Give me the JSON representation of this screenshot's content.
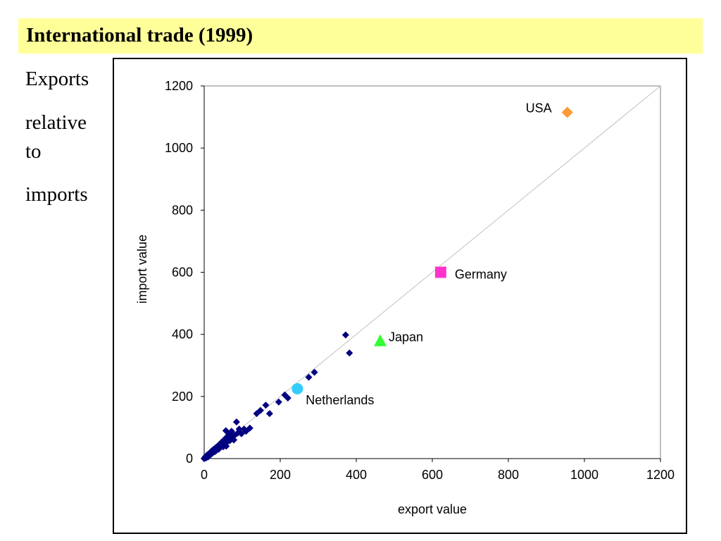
{
  "slide": {
    "title": "International trade (1999)",
    "side_lines": [
      "Exports",
      "relative",
      "to",
      "imports"
    ]
  },
  "chart_data": {
    "type": "scatter",
    "title": "",
    "xlabel": "export value",
    "ylabel": "import value",
    "xlim": [
      0,
      1200
    ],
    "ylim": [
      0,
      1200
    ],
    "xticks": [
      "0",
      "200",
      "400",
      "600",
      "800",
      "1000",
      "1200"
    ],
    "yticks": [
      "0",
      "200",
      "400",
      "600",
      "800",
      "1000",
      "1200"
    ],
    "grid": false,
    "reference_line": {
      "from": [
        0,
        0
      ],
      "to": [
        1200,
        1200
      ],
      "color": "#c0c0c0"
    },
    "series": [
      {
        "color": "#000080",
        "marker": "diamond",
        "points": [
          [
            0,
            0
          ],
          [
            2,
            3
          ],
          [
            3,
            6
          ],
          [
            5,
            2
          ],
          [
            6,
            8
          ],
          [
            8,
            12
          ],
          [
            10,
            5
          ],
          [
            12,
            15
          ],
          [
            14,
            10
          ],
          [
            16,
            20
          ],
          [
            18,
            14
          ],
          [
            20,
            25
          ],
          [
            22,
            18
          ],
          [
            25,
            30
          ],
          [
            28,
            22
          ],
          [
            30,
            35
          ],
          [
            32,
            26
          ],
          [
            35,
            40
          ],
          [
            38,
            30
          ],
          [
            40,
            45
          ],
          [
            42,
            36
          ],
          [
            45,
            52
          ],
          [
            48,
            42
          ],
          [
            50,
            38
          ],
          [
            52,
            60
          ],
          [
            55,
            48
          ],
          [
            57,
            90
          ],
          [
            58,
            40
          ],
          [
            60,
            70
          ],
          [
            62,
            55
          ],
          [
            65,
            80
          ],
          [
            68,
            58
          ],
          [
            70,
            65
          ],
          [
            72,
            88
          ],
          [
            75,
            70
          ],
          [
            78,
            60
          ],
          [
            80,
            75
          ],
          [
            85,
            118
          ],
          [
            88,
            82
          ],
          [
            92,
            95
          ],
          [
            98,
            80
          ],
          [
            105,
            95
          ],
          [
            110,
            88
          ],
          [
            120,
            98
          ],
          [
            138,
            145
          ],
          [
            148,
            155
          ],
          [
            162,
            172
          ],
          [
            172,
            145
          ],
          [
            196,
            182
          ],
          [
            212,
            205
          ],
          [
            220,
            195
          ],
          [
            275,
            262
          ],
          [
            290,
            278
          ],
          [
            372,
            398
          ],
          [
            382,
            340
          ]
        ]
      }
    ],
    "highlighted": [
      {
        "name": "USA",
        "x": 955,
        "y": 1115,
        "marker": "diamond",
        "color": "#ff9933",
        "label_pos": "left"
      },
      {
        "name": "Germany",
        "x": 622,
        "y": 600,
        "marker": "square",
        "color": "#ff33cc",
        "label_pos": "right"
      },
      {
        "name": "Japan",
        "x": 463,
        "y": 380,
        "marker": "triangle",
        "color": "#33ff33",
        "label_pos": "right"
      },
      {
        "name": "Netherlands",
        "x": 245,
        "y": 225,
        "marker": "circle",
        "color": "#33ccff",
        "label_pos": "below-right"
      }
    ]
  }
}
